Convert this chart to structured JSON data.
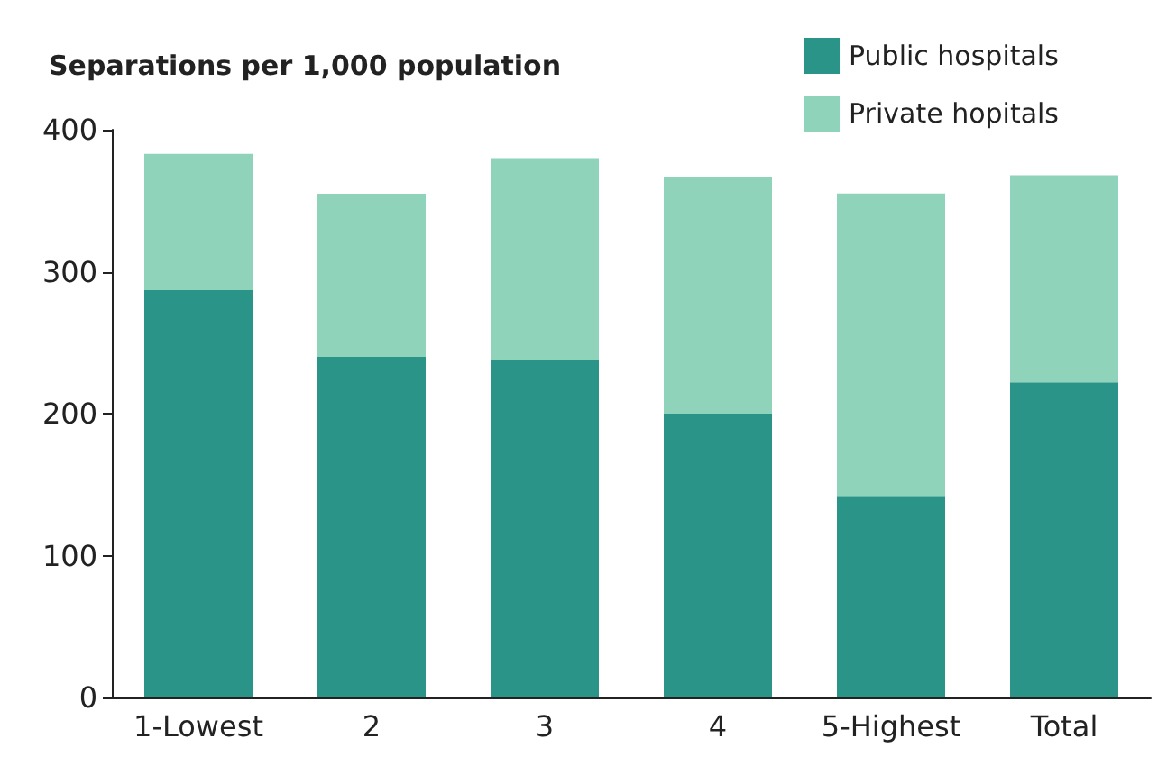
{
  "chart_data": {
    "type": "bar",
    "stacked": true,
    "ylabel": "Separations per 1,000 population",
    "categories": [
      "1-Lowest",
      "2",
      "3",
      "4",
      "5-Highest",
      "Total"
    ],
    "series": [
      {
        "name": "Public hospitals",
        "color": "#2a9489",
        "values": [
          287,
          240,
          238,
          200,
          142,
          222
        ]
      },
      {
        "name": "Private hopitals",
        "color": "#8fd3bb",
        "values": [
          96,
          115,
          142,
          167,
          213,
          146
        ]
      }
    ],
    "ylim": [
      0,
      400
    ],
    "yticks": [
      0,
      100,
      200,
      300,
      400
    ],
    "grid": false,
    "legend": "top right"
  }
}
